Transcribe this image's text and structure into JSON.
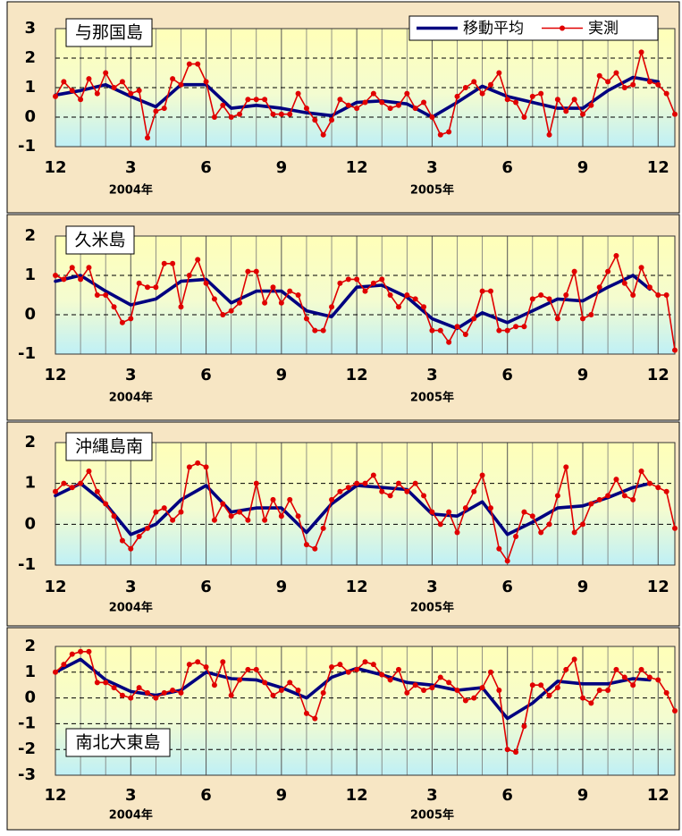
{
  "chart_data": [
    {
      "type": "line",
      "title": "与那国島",
      "title_position": "upper left",
      "legend": "upper right",
      "xlim": [
        0,
        74
      ],
      "ylim": [
        -1,
        3
      ],
      "yticks": [
        -1,
        0,
        1,
        2,
        3
      ],
      "grid": true,
      "xticks": [
        {
          "value": 0,
          "label": "12"
        },
        {
          "value": 9,
          "label": "3"
        },
        {
          "value": 18,
          "label": "6"
        },
        {
          "value": 27,
          "label": "9"
        },
        {
          "value": 36,
          "label": "12"
        },
        {
          "value": 45,
          "label": "3"
        },
        {
          "value": 54,
          "label": "6"
        },
        {
          "value": 63,
          "label": "9"
        },
        {
          "value": 72,
          "label": "12"
        }
      ],
      "annotations": [
        {
          "text": "2004年",
          "x": 9
        },
        {
          "text": "2005年",
          "x": 45
        }
      ],
      "x": [
        0,
        1,
        2,
        3,
        4,
        5,
        6,
        7,
        8,
        9,
        10,
        11,
        12,
        13,
        14,
        15,
        16,
        17,
        18,
        19,
        20,
        21,
        22,
        23,
        24,
        25,
        26,
        27,
        28,
        29,
        30,
        31,
        32,
        33,
        34,
        35,
        36,
        37,
        38,
        39,
        40,
        41,
        42,
        43,
        44,
        45,
        46,
        47,
        48,
        49,
        50,
        51,
        52,
        53,
        54,
        55,
        56,
        57,
        58,
        59,
        60,
        61,
        62,
        63,
        64,
        65,
        66,
        67,
        68,
        69,
        70,
        71,
        72,
        73,
        74
      ],
      "series": [
        {
          "name": "移動平均",
          "color": "#000080",
          "x": [
            0,
            3,
            6,
            9,
            12,
            15,
            18,
            21,
            24,
            27,
            30,
            33,
            36,
            39,
            42,
            45,
            48,
            51,
            54,
            57,
            60,
            63,
            66,
            69,
            72
          ],
          "values": [
            0.75,
            0.9,
            1.1,
            0.7,
            0.35,
            1.1,
            1.1,
            0.3,
            0.4,
            0.3,
            0.15,
            0.05,
            0.5,
            0.55,
            0.45,
            0.0,
            0.5,
            1.05,
            0.7,
            0.5,
            0.3,
            0.3,
            0.9,
            1.35,
            1.2
          ]
        },
        {
          "name": "実測",
          "color": "#e00000",
          "marker": true,
          "values": [
            0.7,
            1.2,
            0.9,
            0.6,
            1.3,
            0.8,
            1.5,
            1.0,
            1.2,
            0.8,
            0.9,
            -0.7,
            0.2,
            0.3,
            1.3,
            1.1,
            1.8,
            1.8,
            1.2,
            0.0,
            0.4,
            0.0,
            0.1,
            0.6,
            0.6,
            0.6,
            0.1,
            0.1,
            0.1,
            0.8,
            0.3,
            -0.1,
            -0.6,
            -0.1,
            0.6,
            0.4,
            0.3,
            0.5,
            0.8,
            0.5,
            0.3,
            0.4,
            0.8,
            0.3,
            0.5,
            0.0,
            -0.6,
            -0.5,
            0.7,
            1.0,
            1.2,
            0.8,
            1.1,
            1.5,
            0.6,
            0.5,
            0.0,
            0.7,
            0.8,
            -0.6,
            0.6,
            0.2,
            0.6,
            0.1,
            0.4,
            1.4,
            1.2,
            1.5,
            1.0,
            1.1,
            2.2,
            1.2,
            1.1,
            0.8,
            0.1
          ]
        }
      ]
    },
    {
      "type": "line",
      "title": "久米島",
      "title_position": "upper left",
      "xlim": [
        0,
        74
      ],
      "ylim": [
        -1,
        2
      ],
      "yticks": [
        -1,
        0,
        1,
        2
      ],
      "grid": true,
      "xticks": [
        {
          "value": 0,
          "label": "12"
        },
        {
          "value": 9,
          "label": "3"
        },
        {
          "value": 18,
          "label": "6"
        },
        {
          "value": 27,
          "label": "9"
        },
        {
          "value": 36,
          "label": "12"
        },
        {
          "value": 45,
          "label": "3"
        },
        {
          "value": 54,
          "label": "6"
        },
        {
          "value": 63,
          "label": "9"
        },
        {
          "value": 72,
          "label": "12"
        }
      ],
      "annotations": [
        {
          "text": "2004年",
          "x": 9
        },
        {
          "text": "2005年",
          "x": 45
        }
      ],
      "x": [
        0,
        1,
        2,
        3,
        4,
        5,
        6,
        7,
        8,
        9,
        10,
        11,
        12,
        13,
        14,
        15,
        16,
        17,
        18,
        19,
        20,
        21,
        22,
        23,
        24,
        25,
        26,
        27,
        28,
        29,
        30,
        31,
        32,
        33,
        34,
        35,
        36,
        37,
        38,
        39,
        40,
        41,
        42,
        43,
        44,
        45,
        46,
        47,
        48,
        49,
        50,
        51,
        52,
        53,
        54,
        55,
        56,
        57,
        58,
        59,
        60,
        61,
        62,
        63,
        64,
        65,
        66,
        67,
        68,
        69,
        70,
        71,
        72,
        73,
        74
      ],
      "series": [
        {
          "color": "#000080",
          "x": [
            0,
            3,
            6,
            9,
            12,
            15,
            18,
            21,
            24,
            27,
            30,
            33,
            36,
            39,
            42,
            45,
            48,
            51,
            54,
            57,
            60,
            63,
            66,
            69,
            71
          ],
          "values": [
            0.85,
            1.0,
            0.6,
            0.25,
            0.4,
            0.85,
            0.9,
            0.3,
            0.6,
            0.6,
            0.1,
            -0.05,
            0.7,
            0.75,
            0.45,
            -0.1,
            -0.35,
            0.05,
            -0.2,
            0.1,
            0.4,
            0.35,
            0.7,
            1.0,
            0.65
          ]
        },
        {
          "color": "#e00000",
          "marker": true,
          "values": [
            1.0,
            0.9,
            1.2,
            0.9,
            1.2,
            0.5,
            0.5,
            0.2,
            -0.2,
            -0.1,
            0.8,
            0.7,
            0.7,
            1.3,
            1.3,
            0.2,
            1.0,
            1.4,
            0.8,
            0.4,
            0.0,
            0.1,
            0.3,
            1.1,
            1.1,
            0.3,
            0.7,
            0.3,
            0.6,
            0.5,
            -0.1,
            -0.4,
            -0.4,
            0.2,
            0.8,
            0.9,
            0.9,
            0.6,
            0.8,
            0.9,
            0.5,
            0.2,
            0.5,
            0.4,
            0.2,
            -0.4,
            -0.4,
            -0.7,
            -0.3,
            -0.5,
            -0.1,
            0.6,
            0.6,
            -0.4,
            -0.4,
            -0.3,
            -0.3,
            0.4,
            0.5,
            0.4,
            -0.1,
            0.5,
            1.1,
            -0.1,
            0.0,
            0.7,
            1.1,
            1.5,
            0.8,
            0.5,
            1.2,
            0.7,
            0.5,
            0.5,
            -0.9
          ]
        }
      ]
    },
    {
      "type": "line",
      "title": "沖縄島南",
      "title_position": "upper left",
      "xlim": [
        0,
        74
      ],
      "ylim": [
        -1,
        2
      ],
      "yticks": [
        -1,
        0,
        1,
        2
      ],
      "grid": true,
      "xticks": [
        {
          "value": 0,
          "label": "12"
        },
        {
          "value": 9,
          "label": "3"
        },
        {
          "value": 18,
          "label": "6"
        },
        {
          "value": 27,
          "label": "9"
        },
        {
          "value": 36,
          "label": "12"
        },
        {
          "value": 45,
          "label": "3"
        },
        {
          "value": 54,
          "label": "6"
        },
        {
          "value": 63,
          "label": "9"
        },
        {
          "value": 72,
          "label": "12"
        }
      ],
      "annotations": [
        {
          "text": "2004年",
          "x": 9
        },
        {
          "text": "2005年",
          "x": 45
        }
      ],
      "x": [
        0,
        1,
        2,
        3,
        4,
        5,
        6,
        7,
        8,
        9,
        10,
        11,
        12,
        13,
        14,
        15,
        16,
        17,
        18,
        19,
        20,
        21,
        22,
        23,
        24,
        25,
        26,
        27,
        28,
        29,
        30,
        31,
        32,
        33,
        34,
        35,
        36,
        37,
        38,
        39,
        40,
        41,
        42,
        43,
        44,
        45,
        46,
        47,
        48,
        49,
        50,
        51,
        52,
        53,
        54,
        55,
        56,
        57,
        58,
        59,
        60,
        61,
        62,
        63,
        64,
        65,
        66,
        67,
        68,
        69,
        70,
        71,
        72,
        73,
        74
      ],
      "series": [
        {
          "color": "#000080",
          "x": [
            0,
            3,
            6,
            9,
            12,
            15,
            18,
            21,
            24,
            27,
            30,
            33,
            36,
            39,
            42,
            45,
            48,
            51,
            54,
            57,
            60,
            63,
            66,
            69,
            71
          ],
          "values": [
            0.7,
            1.0,
            0.5,
            -0.25,
            0.0,
            0.6,
            0.95,
            0.3,
            0.4,
            0.4,
            -0.2,
            0.5,
            0.95,
            0.9,
            0.85,
            0.25,
            0.2,
            0.55,
            -0.25,
            0.05,
            0.4,
            0.45,
            0.65,
            0.9,
            1.0
          ]
        },
        {
          "color": "#e00000",
          "marker": true,
          "values": [
            0.8,
            1.0,
            0.9,
            1.0,
            1.3,
            0.8,
            0.5,
            0.2,
            -0.4,
            -0.6,
            -0.3,
            -0.1,
            0.3,
            0.4,
            0.1,
            0.3,
            1.4,
            1.5,
            1.4,
            0.1,
            0.5,
            0.2,
            0.3,
            0.1,
            1.0,
            0.1,
            0.6,
            0.2,
            0.6,
            0.2,
            -0.5,
            -0.6,
            -0.1,
            0.6,
            0.8,
            0.9,
            1.0,
            1.0,
            1.2,
            0.8,
            0.7,
            1.0,
            0.8,
            1.0,
            0.7,
            0.3,
            0.0,
            0.3,
            -0.2,
            0.4,
            0.8,
            1.2,
            0.4,
            -0.6,
            -0.9,
            -0.3,
            0.3,
            0.2,
            -0.2,
            0.0,
            0.7,
            1.4,
            -0.2,
            0.0,
            0.5,
            0.6,
            0.7,
            1.1,
            0.7,
            0.6,
            1.3,
            1.0,
            0.9,
            0.8,
            -0.1
          ]
        }
      ]
    },
    {
      "type": "line",
      "title": "南北大東島",
      "title_position": "lower left",
      "xlim": [
        0,
        74
      ],
      "ylim": [
        -3,
        2
      ],
      "yticks": [
        -3,
        -2,
        -1,
        0,
        1,
        2
      ],
      "grid": true,
      "xticks": [
        {
          "value": 0,
          "label": "12"
        },
        {
          "value": 9,
          "label": "3"
        },
        {
          "value": 18,
          "label": "6"
        },
        {
          "value": 27,
          "label": "9"
        },
        {
          "value": 36,
          "label": "12"
        },
        {
          "value": 45,
          "label": "3"
        },
        {
          "value": 54,
          "label": "6"
        },
        {
          "value": 63,
          "label": "9"
        },
        {
          "value": 72,
          "label": "12"
        }
      ],
      "annotations": [
        {
          "text": "2004年",
          "x": 9
        },
        {
          "text": "2005年",
          "x": 45
        }
      ],
      "x": [
        0,
        1,
        2,
        3,
        4,
        5,
        6,
        7,
        8,
        9,
        10,
        11,
        12,
        13,
        14,
        15,
        16,
        17,
        18,
        19,
        20,
        21,
        22,
        23,
        24,
        25,
        26,
        27,
        28,
        29,
        30,
        31,
        32,
        33,
        34,
        35,
        36,
        37,
        38,
        39,
        40,
        41,
        42,
        43,
        44,
        45,
        46,
        47,
        48,
        49,
        50,
        51,
        52,
        53,
        54,
        55,
        56,
        57,
        58,
        59,
        60,
        61,
        62,
        63,
        64,
        65,
        66,
        67,
        68,
        69,
        70,
        71,
        72,
        73,
        74
      ],
      "series": [
        {
          "color": "#000080",
          "x": [
            0,
            3,
            6,
            9,
            12,
            15,
            18,
            21,
            24,
            27,
            30,
            33,
            36,
            39,
            42,
            45,
            48,
            51,
            54,
            57,
            60,
            63,
            66,
            69,
            71
          ],
          "values": [
            1.0,
            1.5,
            0.7,
            0.25,
            0.1,
            0.3,
            1.0,
            0.75,
            0.7,
            0.4,
            0.0,
            0.8,
            1.15,
            0.9,
            0.6,
            0.5,
            0.3,
            0.4,
            -0.8,
            -0.2,
            0.65,
            0.55,
            0.55,
            0.75,
            0.7
          ]
        },
        {
          "color": "#e00000",
          "marker": true,
          "values": [
            1.0,
            1.3,
            1.7,
            1.8,
            1.8,
            0.6,
            0.6,
            0.4,
            0.1,
            0.0,
            0.4,
            0.2,
            0.0,
            0.2,
            0.3,
            0.2,
            1.3,
            1.4,
            1.2,
            0.5,
            1.4,
            0.1,
            0.7,
            1.1,
            1.1,
            0.6,
            0.1,
            0.3,
            0.6,
            0.3,
            -0.6,
            -0.8,
            0.2,
            1.2,
            1.3,
            1.0,
            1.1,
            1.4,
            1.3,
            0.9,
            0.7,
            1.1,
            0.2,
            0.5,
            0.3,
            0.4,
            0.8,
            0.6,
            0.3,
            -0.1,
            0.0,
            0.4,
            1.0,
            0.3,
            -2.0,
            -2.1,
            -1.1,
            0.5,
            0.5,
            0.1,
            0.4,
            1.1,
            1.5,
            0.0,
            -0.2,
            0.3,
            0.3,
            1.1,
            0.8,
            0.5,
            1.1,
            0.8,
            0.7,
            0.2,
            -0.5
          ]
        }
      ]
    }
  ]
}
